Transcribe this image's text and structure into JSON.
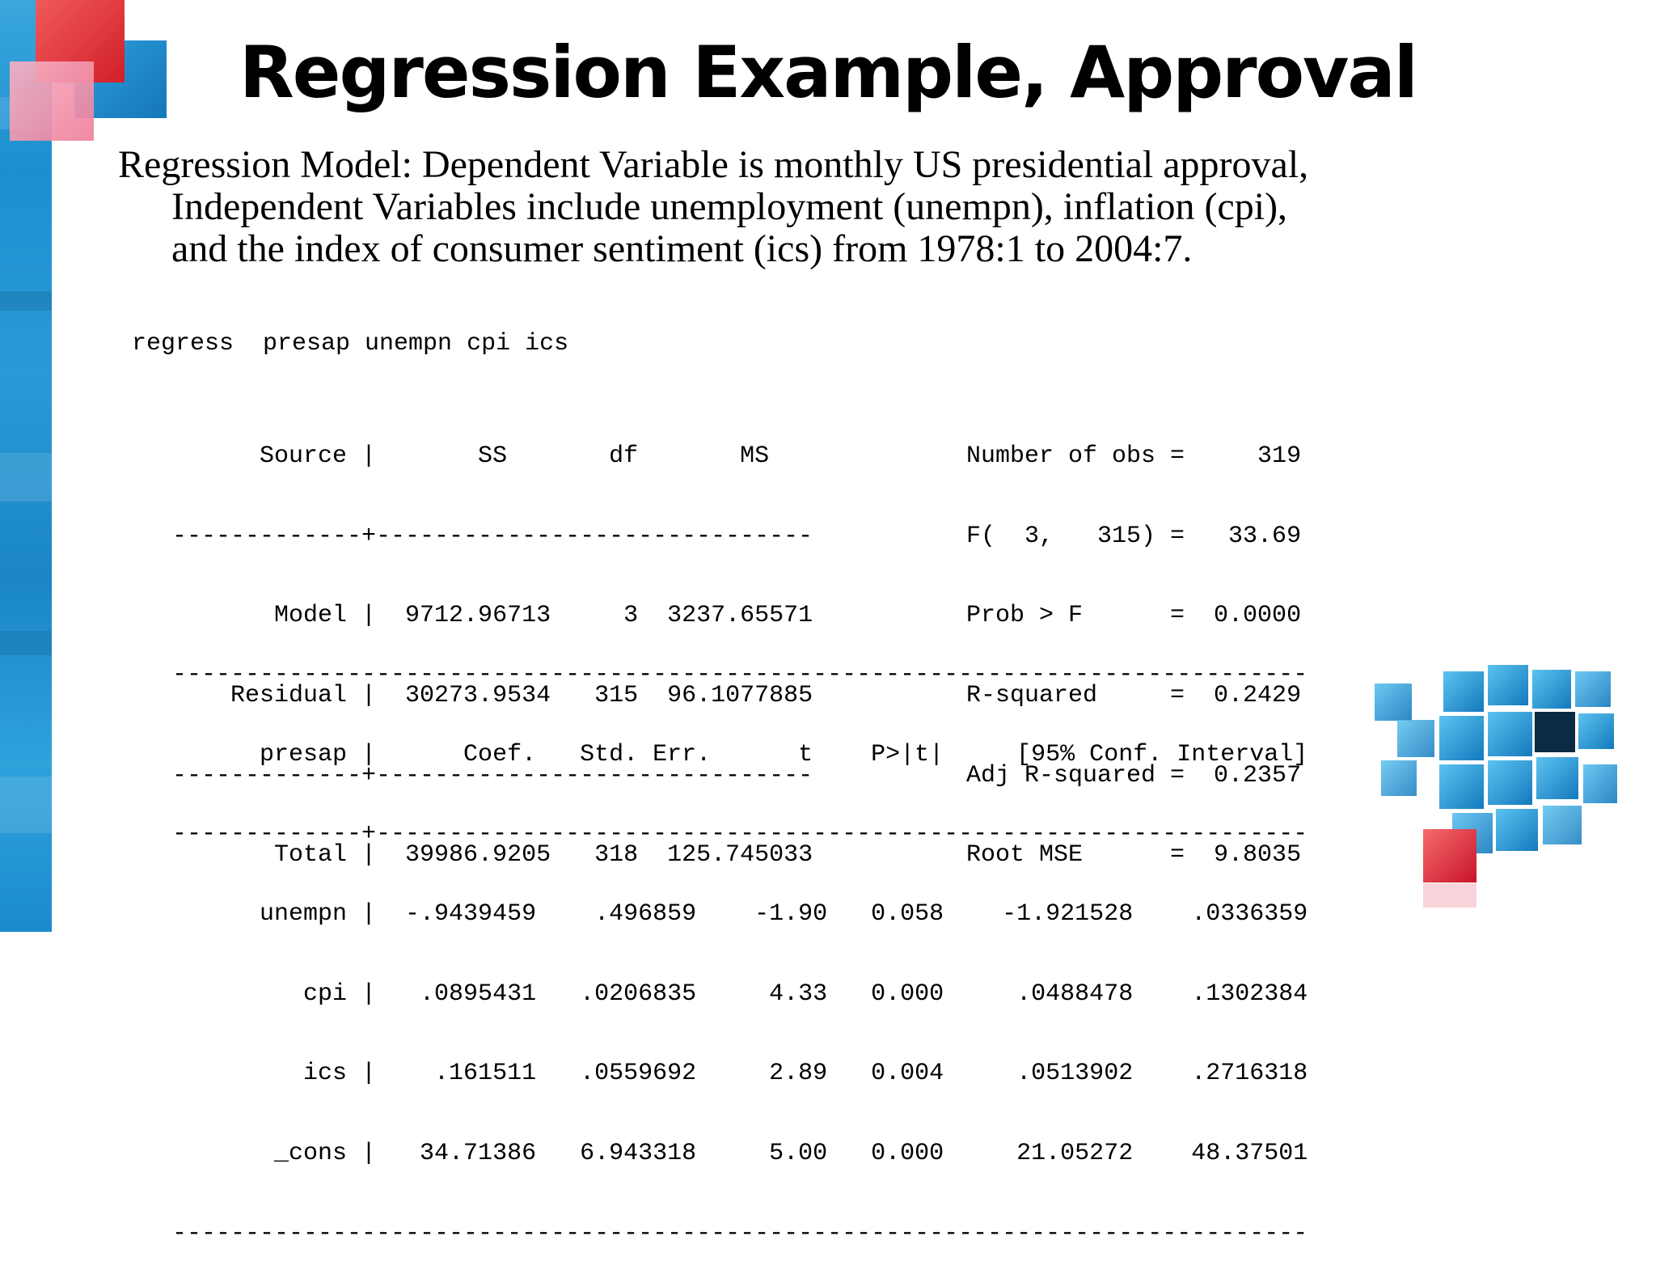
{
  "title": "Regression Example, Approval",
  "description": {
    "line1": "Regression Model: Dependent Variable is monthly US presidential approval,",
    "line2": "Independent Variables include unemployment (unempn), inflation (cpi),",
    "line3": "and the index of consumer sentiment (ics) from 1978:1 to 2004:7."
  },
  "command": "regress  presap unempn cpi ics",
  "anova": {
    "header": "      Source |       SS       df       MS",
    "sep1": "-------------+------------------------------",
    "rows": [
      "       Model |  9712.96713     3  3237.65571",
      "    Residual |  30273.9534   315  96.1077885"
    ],
    "sep2": "-------------+------------------------------",
    "total": "       Total |  39986.9205   318  125.745033"
  },
  "stats": [
    "Number of obs =     319",
    "F(  3,   315) =   33.69",
    "Prob > F      =  0.0000",
    "R-squared     =  0.2429",
    "Adj R-squared =  0.2357",
    "Root MSE      =  9.8035"
  ],
  "coef_table": {
    "top_rule": "------------------------------------------------------------------------------",
    "header": "      presap |      Coef.   Std. Err.      t    P>|t|     [95% Conf. Interval]",
    "sep": "-------------+----------------------------------------------------------------",
    "rows": [
      "      unempn |  -.9439459    .496859    -1.90   0.058    -1.921528    .0336359",
      "         cpi |   .0895431   .0206835     4.33   0.000     .0488478    .1302384",
      "         ics |    .161511   .0559692     2.89   0.004     .0513902    .2716318",
      "       _cons |   34.71386   6.943318     5.00   0.000     21.05272    48.37501"
    ],
    "bottom_rule": "------------------------------------------------------------------------------"
  }
}
